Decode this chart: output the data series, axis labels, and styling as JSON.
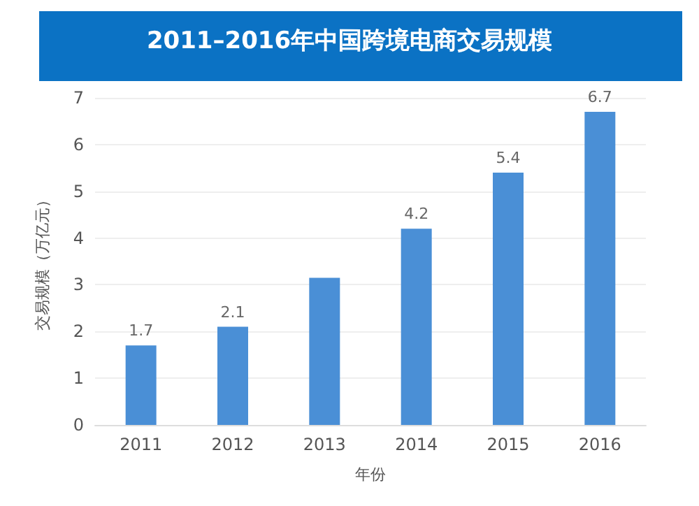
{
  "chart_data": {
    "type": "bar",
    "title": "2011–2016年中国跨境电商交易规模",
    "categories": [
      "2011",
      "2012",
      "2013",
      "2014",
      "2015",
      "2016"
    ],
    "values": [
      1.7,
      2.1,
      3.15,
      4.2,
      5.4,
      6.7
    ],
    "color": "#4a8fd6",
    "value_labels": [
      "1.7",
      "2.1",
      null,
      "4.2",
      "5.4",
      "6.7"
    ],
    "ylim": [
      0,
      7
    ],
    "yticks": [
      0,
      1,
      2,
      3,
      4,
      5,
      6,
      7
    ],
    "grid": "y",
    "xlabel": "年份",
    "ylabel": "交易规模（万亿元）"
  }
}
